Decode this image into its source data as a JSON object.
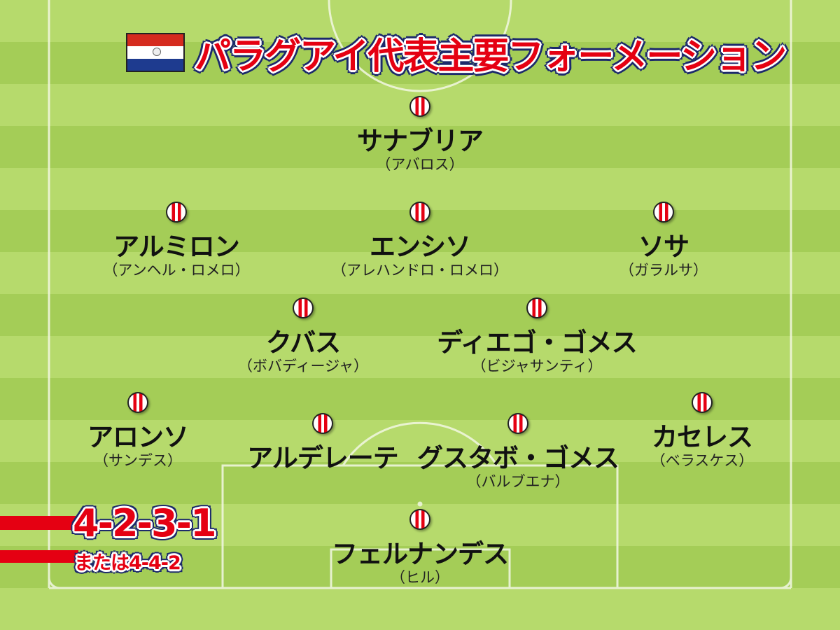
{
  "title": "パラグアイ代表主要フォーメーション",
  "flag": {
    "name": "paraguay-flag",
    "colors": [
      "#d52b1e",
      "#ffffff",
      "#0038a8"
    ]
  },
  "formation": {
    "primary": "4-2-3-1",
    "alternate": "または4-4-2"
  },
  "colors": {
    "accent": "#e50012",
    "outline": "#1c2a6b",
    "pitch_light": "#b6da6c",
    "pitch_dark": "#a4cd57"
  },
  "players": [
    {
      "name": "サナブリア",
      "alt": "（アバロス）"
    },
    {
      "name": "アルミロン",
      "alt": "（アンヘル・ロメロ）"
    },
    {
      "name": "エンシソ",
      "alt": "（アレハンドロ・ロメロ）"
    },
    {
      "name": "ソサ",
      "alt": "（ガラルサ）"
    },
    {
      "name": "クバス",
      "alt": "（ボバディージャ）"
    },
    {
      "name": "ディエゴ・ゴメス",
      "alt": "（ビジャサンティ）"
    },
    {
      "name": "アロンソ",
      "alt": "（サンデス）"
    },
    {
      "name": "アルデレーテ"
    },
    {
      "name": "グスタボ・ゴメス",
      "alt": "（バルブエナ）"
    },
    {
      "name": "カセレス",
      "alt": "（ベラスケス）"
    },
    {
      "name": "フェルナンデス",
      "alt": "（ヒル）"
    }
  ]
}
